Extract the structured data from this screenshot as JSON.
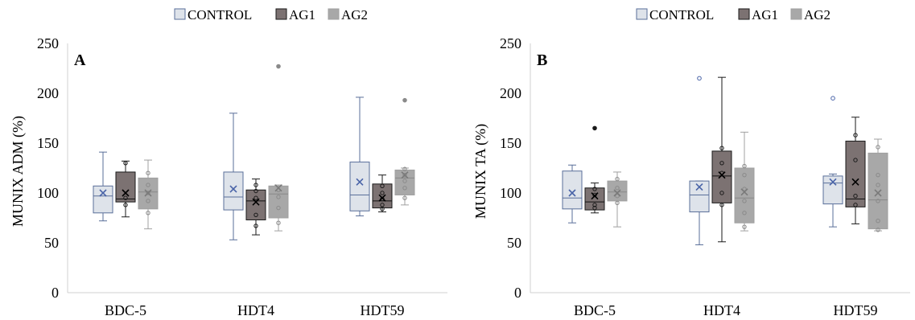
{
  "legend": {
    "control": "CONTROL",
    "ag1": "AG1",
    "ag2": "AG2"
  },
  "colors": {
    "control_fill": "#dee3ea",
    "control_stroke": "#5a6f9a",
    "control_mean": "#4a64a8",
    "ag1_fill": "#7c7272",
    "ag1_stroke": "#1a1a1a",
    "ag2_fill": "#a8a8a8",
    "ag2_stroke": "#a0a0a0",
    "axis": "#d0d0d0"
  },
  "chart_data": [
    {
      "type": "box",
      "panel_label": "A",
      "ylabel": "MUNIX ADM (%)",
      "ylim": [
        0,
        250
      ],
      "yticks": [
        "0",
        "50",
        "100",
        "150",
        "200",
        "250"
      ],
      "categories": [
        "BDC-5",
        "HDT4",
        "HDT59"
      ],
      "series": [
        {
          "name": "CONTROL",
          "boxes": [
            {
              "min": 72,
              "q1": 80,
              "median": 97,
              "q3": 107,
              "max": 141,
              "mean": 100,
              "points": [],
              "outliers": []
            },
            {
              "min": 53,
              "q1": 83,
              "median": 96,
              "q3": 121,
              "max": 180,
              "mean": 104,
              "points": [],
              "outliers": []
            },
            {
              "min": 77,
              "q1": 82,
              "median": 98,
              "q3": 131,
              "max": 196,
              "mean": 111,
              "points": [],
              "outliers": []
            }
          ]
        },
        {
          "name": "AG1",
          "boxes": [
            {
              "min": 76,
              "q1": 91,
              "median": 94,
              "q3": 121,
              "max": 132,
              "mean": 100,
              "points": [
                88,
                95,
                130
              ],
              "outliers": []
            },
            {
              "min": 58,
              "q1": 73,
              "median": 92,
              "q3": 103,
              "max": 114,
              "mean": 91,
              "points": [
                67,
                78,
                95,
                102,
                108
              ],
              "outliers": []
            },
            {
              "min": 81,
              "q1": 85,
              "median": 92,
              "q3": 109,
              "max": 118,
              "mean": 95,
              "points": [
                84,
                88,
                94,
                100,
                107
              ],
              "outliers": []
            }
          ]
        },
        {
          "name": "AG2",
          "boxes": [
            {
              "min": 64,
              "q1": 84,
              "median": 101,
              "q3": 115,
              "max": 133,
              "mean": 100,
              "points": [
                80,
                92,
                100,
                108,
                120
              ],
              "outliers": []
            },
            {
              "min": 62,
              "q1": 75,
              "median": 99,
              "q3": 107,
              "max": 108,
              "mean": 105,
              "points": [
                70,
                85,
                96,
                103
              ],
              "outliers": [
                227
              ]
            },
            {
              "min": 88,
              "q1": 98,
              "median": 115,
              "q3": 123,
              "max": 125,
              "mean": 118,
              "points": [
                95,
                105,
                112,
                118,
                124
              ],
              "outliers": [
                193
              ]
            }
          ]
        }
      ]
    },
    {
      "type": "box",
      "panel_label": "B",
      "ylabel": "MUNIX TA (%)",
      "ylim": [
        0,
        250
      ],
      "yticks": [
        "0",
        "50",
        "100",
        "150",
        "200",
        "250"
      ],
      "categories": [
        "BDC-5",
        "HDT4",
        "HDT59"
      ],
      "series": [
        {
          "name": "CONTROL",
          "boxes": [
            {
              "min": 70,
              "q1": 84,
              "median": 95,
              "q3": 122,
              "max": 128,
              "mean": 100,
              "points": [],
              "outliers": []
            },
            {
              "min": 48,
              "q1": 81,
              "median": 98,
              "q3": 112,
              "max": 112,
              "mean": 106,
              "points": [],
              "outliers": [
                215
              ]
            },
            {
              "min": 66,
              "q1": 89,
              "median": 110,
              "q3": 117,
              "max": 119,
              "mean": 111,
              "points": [],
              "outliers": [
                195
              ]
            }
          ]
        },
        {
          "name": "AG1",
          "boxes": [
            {
              "min": 80,
              "q1": 83,
              "median": 91,
              "q3": 105,
              "max": 110,
              "mean": 97,
              "points": [
                85,
                88,
                98,
                104
              ],
              "outliers": [
                165
              ]
            },
            {
              "min": 51,
              "q1": 90,
              "median": 117,
              "q3": 142,
              "max": 216,
              "mean": 118,
              "points": [
                88,
                100,
                120,
                130,
                145
              ],
              "outliers": []
            },
            {
              "min": 69,
              "q1": 86,
              "median": 94,
              "q3": 152,
              "max": 176,
              "mean": 111,
              "points": [
                88,
                97,
                133,
                158
              ],
              "outliers": []
            }
          ]
        },
        {
          "name": "AG2",
          "boxes": [
            {
              "min": 66,
              "q1": 92,
              "median": 101,
              "q3": 112,
              "max": 121,
              "mean": 100,
              "points": [
                90,
                97,
                105,
                114
              ],
              "outliers": []
            },
            {
              "min": 62,
              "q1": 70,
              "median": 95,
              "q3": 125,
              "max": 161,
              "mean": 101,
              "points": [
                66,
                80,
                92,
                104,
                118,
                127
              ],
              "outliers": []
            },
            {
              "min": 62,
              "q1": 64,
              "median": 93,
              "q3": 140,
              "max": 154,
              "mean": 100,
              "points": [
                63,
                72,
                92,
                108,
                118,
                146
              ],
              "outliers": []
            }
          ]
        }
      ]
    }
  ]
}
